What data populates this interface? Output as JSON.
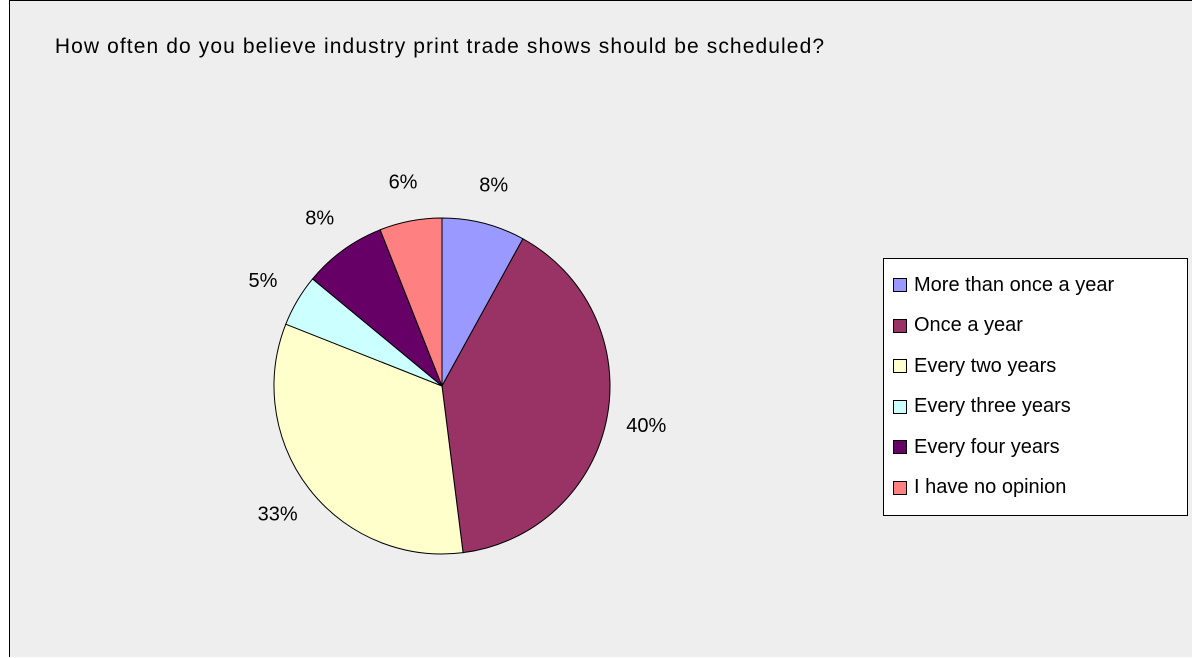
{
  "chart_data": {
    "type": "pie",
    "title": "How often do you believe industry print trade shows should be scheduled?",
    "unit": "%",
    "legend_position": "right",
    "slices": [
      {
        "label": "More than once a year",
        "value": 8,
        "display": "8%",
        "color": "#9999ff"
      },
      {
        "label": "Once a year",
        "value": 40,
        "display": "40%",
        "color": "#993366"
      },
      {
        "label": "Every two years",
        "value": 33,
        "display": "33%",
        "color": "#ffffcc"
      },
      {
        "label": "Every three years",
        "value": 5,
        "display": "5%",
        "color": "#ccffff"
      },
      {
        "label": "Every four years",
        "value": 8,
        "display": "8%",
        "color": "#660066"
      },
      {
        "label": "I have no opinion",
        "value": 6,
        "display": "6%",
        "color": "#ff8080"
      }
    ]
  }
}
